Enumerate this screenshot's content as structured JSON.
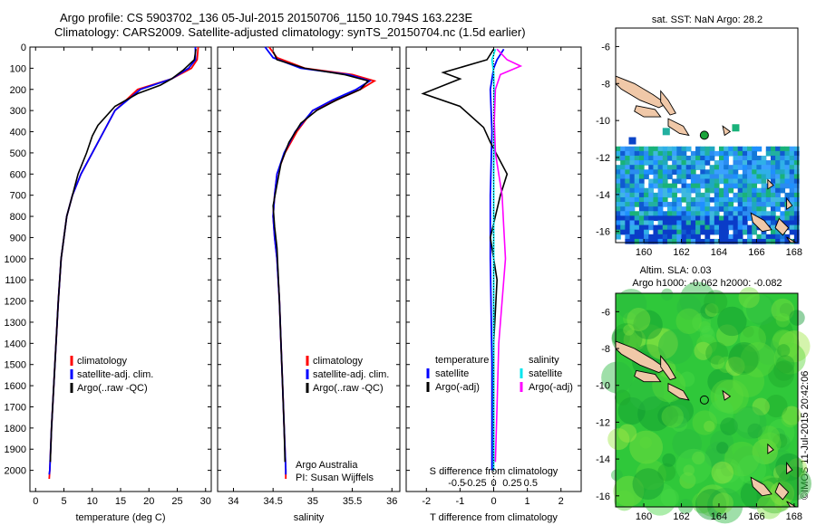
{
  "header": {
    "line1": "Argo profile: CS 5903702_136 05-Jul-2015 20150706_1150 10.794S 163.223E",
    "line2": "Climatology: CARS2009. Satellite-adjusted climatology: synTS_20150704.nc (1.5d earlier)"
  },
  "credit": "©IMOS 11-Jul-2015 20:42:06",
  "colors": {
    "climatology": "#ff0000",
    "satellite": "#0000ff",
    "argo": "#000000",
    "cyan": "#00e5ee",
    "magenta": "#ff00ff"
  },
  "chart_data": [
    {
      "type": "line",
      "name": "temperature-profile",
      "xlabel": "temperature (deg C)",
      "xlim": [
        -1,
        31
      ],
      "ylim": [
        2100,
        0
      ],
      "xticks": [
        "0",
        "5",
        "10",
        "15",
        "20",
        "25",
        "30"
      ],
      "yticks": [
        "0",
        "100",
        "200",
        "300",
        "400",
        "500",
        "600",
        "700",
        "800",
        "900",
        "1000",
        "1100",
        "1200",
        "1300",
        "1400",
        "1500",
        "1600",
        "1700",
        "1800",
        "1900",
        "2000"
      ],
      "legend": [
        "climatology",
        "satellite-adj. clim.",
        "Argo(..raw -QC)"
      ],
      "series": [
        {
          "name": "climatology",
          "points": [
            [
              28.7,
              0
            ],
            [
              28.5,
              60
            ],
            [
              27.5,
              100
            ],
            [
              24,
              150
            ],
            [
              18,
              200
            ],
            [
              14,
              300
            ],
            [
              12,
              400
            ],
            [
              10,
              500
            ],
            [
              8,
              600
            ],
            [
              6.5,
              700
            ],
            [
              5.5,
              800
            ],
            [
              5,
              900
            ],
            [
              4.5,
              1000
            ],
            [
              4,
              1200
            ],
            [
              3.6,
              1400
            ],
            [
              3.2,
              1600
            ],
            [
              2.8,
              1800
            ],
            [
              2.5,
              2000
            ],
            [
              2.4,
              2040
            ]
          ]
        },
        {
          "name": "satellite-adj. clim.",
          "points": [
            [
              28.2,
              0
            ],
            [
              28.2,
              60
            ],
            [
              27,
              100
            ],
            [
              24,
              150
            ],
            [
              18.5,
              200
            ],
            [
              14,
              300
            ],
            [
              12,
              400
            ],
            [
              10,
              500
            ],
            [
              8,
              600
            ],
            [
              6.5,
              700
            ],
            [
              5.5,
              800
            ],
            [
              5,
              900
            ],
            [
              4.5,
              1000
            ],
            [
              4,
              1200
            ],
            [
              3.6,
              1400
            ],
            [
              3.2,
              1600
            ],
            [
              2.8,
              1800
            ],
            [
              2.5,
              2000
            ],
            [
              2.4,
              2020
            ]
          ]
        },
        {
          "name": "Argo(..raw -QC)",
          "points": [
            [
              28.3,
              10
            ],
            [
              28,
              60
            ],
            [
              26,
              110
            ],
            [
              24,
              150
            ],
            [
              22,
              180
            ],
            [
              18,
              220
            ],
            [
              14,
              280
            ],
            [
              11,
              370
            ],
            [
              10,
              420
            ],
            [
              9,
              500
            ],
            [
              7.5,
              600
            ],
            [
              6.5,
              700
            ],
            [
              5.5,
              800
            ],
            [
              5,
              900
            ],
            [
              4.5,
              1000
            ],
            [
              4,
              1200
            ],
            [
              3.6,
              1400
            ],
            [
              3.2,
              1600
            ],
            [
              2.8,
              1800
            ],
            [
              2.6,
              1960
            ]
          ]
        }
      ],
      "annotation_lines": []
    },
    {
      "type": "line",
      "name": "salinity-profile",
      "xlabel": "salinity",
      "xlim": [
        33.8,
        36.1
      ],
      "ylim": [
        2100,
        0
      ],
      "xticks": [
        "34",
        "34.5",
        "35",
        "35.5",
        "36"
      ],
      "legend": [
        "climatology",
        "satellite-adj. clim.",
        "Argo(..raw -QC)"
      ],
      "annotation_lines": [
        "Argo Australia",
        "PI: Susan Wijffels"
      ],
      "series": [
        {
          "name": "climatology",
          "points": [
            [
              34.45,
              0
            ],
            [
              34.55,
              50
            ],
            [
              34.9,
              100
            ],
            [
              35.5,
              130
            ],
            [
              35.78,
              160
            ],
            [
              35.6,
              200
            ],
            [
              35.3,
              250
            ],
            [
              35.0,
              300
            ],
            [
              34.8,
              400
            ],
            [
              34.65,
              500
            ],
            [
              34.55,
              600
            ],
            [
              34.52,
              700
            ],
            [
              34.5,
              800
            ],
            [
              34.52,
              900
            ],
            [
              34.55,
              1000
            ],
            [
              34.58,
              1200
            ],
            [
              34.6,
              1400
            ],
            [
              34.62,
              1600
            ],
            [
              34.64,
              1800
            ],
            [
              34.66,
              2000
            ],
            [
              34.66,
              2040
            ]
          ]
        },
        {
          "name": "satellite-adj. clim.",
          "points": [
            [
              34.4,
              0
            ],
            [
              34.5,
              50
            ],
            [
              34.85,
              100
            ],
            [
              35.45,
              130
            ],
            [
              35.72,
              160
            ],
            [
              35.55,
              200
            ],
            [
              35.25,
              250
            ],
            [
              35.0,
              300
            ],
            [
              34.78,
              400
            ],
            [
              34.64,
              500
            ],
            [
              34.55,
              600
            ],
            [
              34.52,
              700
            ],
            [
              34.5,
              800
            ],
            [
              34.52,
              900
            ],
            [
              34.55,
              1000
            ],
            [
              34.58,
              1200
            ],
            [
              34.6,
              1400
            ],
            [
              34.62,
              1600
            ],
            [
              34.64,
              1800
            ],
            [
              34.66,
              2000
            ],
            [
              34.66,
              2020
            ]
          ]
        },
        {
          "name": "Argo(..raw -QC)",
          "points": [
            [
              34.5,
              20
            ],
            [
              34.55,
              60
            ],
            [
              34.9,
              100
            ],
            [
              35.4,
              130
            ],
            [
              35.7,
              160
            ],
            [
              35.6,
              200
            ],
            [
              35.3,
              250
            ],
            [
              35.05,
              300
            ],
            [
              34.85,
              360
            ],
            [
              34.7,
              450
            ],
            [
              34.6,
              550
            ],
            [
              34.55,
              650
            ],
            [
              34.5,
              750
            ],
            [
              34.52,
              850
            ],
            [
              34.55,
              950
            ],
            [
              34.58,
              1200
            ],
            [
              34.6,
              1400
            ],
            [
              34.62,
              1600
            ],
            [
              34.64,
              1800
            ],
            [
              34.65,
              1960
            ]
          ]
        }
      ]
    },
    {
      "type": "line",
      "name": "difference-profile",
      "xlabel": "T difference from climatology",
      "xlim": [
        -2.6,
        2.6
      ],
      "ylim": [
        2100,
        0
      ],
      "xticks": [
        "-2",
        "-1",
        "0",
        "1",
        "2"
      ],
      "secondary_xlabel": "S difference from climatology",
      "secondary_xticks": [
        "-0.5",
        "-0.25",
        "0",
        "0.25",
        "0.5"
      ],
      "legend_temperature_title": "temperature",
      "legend_temperature": [
        "satellite",
        "Argo(-adj)"
      ],
      "legend_salinity_title": "salinity",
      "legend_salinity": [
        "satellite",
        "Argo(-adj)"
      ],
      "series": [
        {
          "name": "T satellite",
          "points": [
            [
              0.3,
              10
            ],
            [
              0.1,
              60
            ],
            [
              0,
              100
            ],
            [
              -0.1,
              200
            ],
            [
              -0.05,
              400
            ],
            [
              -0.1,
              700
            ],
            [
              -0.1,
              1000
            ],
            [
              -0.05,
              1500
            ],
            [
              -0.05,
              2000
            ]
          ]
        },
        {
          "name": "T Argo(-adj)",
          "points": [
            [
              0,
              10
            ],
            [
              -0.2,
              60
            ],
            [
              -1.5,
              120
            ],
            [
              -1.0,
              150
            ],
            [
              -2.1,
              220
            ],
            [
              -1.0,
              280
            ],
            [
              -0.3,
              380
            ],
            [
              -0.1,
              450
            ],
            [
              0.4,
              600
            ],
            [
              0.2,
              700
            ],
            [
              -0.1,
              900
            ],
            [
              0.1,
              1100
            ],
            [
              0,
              1400
            ],
            [
              0,
              1700
            ],
            [
              0,
              1960
            ]
          ]
        },
        {
          "name": "S satellite",
          "points": [
            [
              0.05,
              10
            ],
            [
              -0.05,
              60
            ],
            [
              0,
              120
            ],
            [
              0.02,
              300
            ],
            [
              0,
              600
            ],
            [
              0,
              1000
            ],
            [
              0,
              1500
            ],
            [
              0,
              2000
            ]
          ]
        },
        {
          "name": "S Argo(-adj)",
          "points": [
            [
              0.1,
              10
            ],
            [
              0.4,
              60
            ],
            [
              0.8,
              90
            ],
            [
              0.2,
              130
            ],
            [
              0.05,
              200
            ],
            [
              0.02,
              350
            ],
            [
              0.05,
              500
            ],
            [
              0.25,
              700
            ],
            [
              0.3,
              850
            ],
            [
              0.35,
              1000
            ],
            [
              0.25,
              1200
            ],
            [
              0.15,
              1400
            ],
            [
              0.1,
              1700
            ],
            [
              0.05,
              1960
            ]
          ]
        }
      ]
    },
    {
      "type": "heatmap",
      "name": "sst-map",
      "title": "sat. SST: NaN Argo: 28.2",
      "xlim": [
        158.5,
        168.2
      ],
      "ylim": [
        -16.6,
        -5.0
      ],
      "xticks": [
        "160",
        "162",
        "164",
        "166",
        "168"
      ],
      "yticks": [
        "-6",
        "-8",
        "-10",
        "-12",
        "-14",
        "-16"
      ],
      "argo_position": {
        "lon": 163.223,
        "lat": -10.794
      }
    },
    {
      "type": "heatmap",
      "name": "sla-map",
      "title_line1": "Altim. SLA: 0.03",
      "title_line2": "Argo h1000: -0.062 h2000: -0.082",
      "xlim": [
        158.5,
        168.2
      ],
      "ylim": [
        -16.6,
        -5.0
      ],
      "xticks": [
        "160",
        "162",
        "164",
        "166",
        "168"
      ],
      "yticks": [
        "-6",
        "-8",
        "-10",
        "-12",
        "-14",
        "-16"
      ],
      "argo_position": {
        "lon": 163.223,
        "lat": -10.794
      }
    }
  ]
}
